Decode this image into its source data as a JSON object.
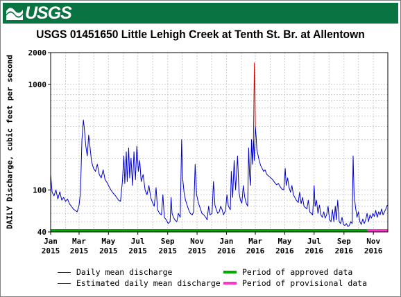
{
  "banner": {
    "logo_text": "USGS",
    "color": "#0a7342"
  },
  "chart_data": {
    "type": "line",
    "title": "USGS 01451650 Little Lehigh Creek at Tenth St. Br. at Allentown",
    "ylabel": "DAILY Discharge, cubic feet per second",
    "xlabel": "",
    "yscale": "log",
    "ylim": [
      40,
      2000
    ],
    "y_ticks": [
      {
        "value": 40,
        "label": "40"
      },
      {
        "value": 100,
        "label": "100"
      },
      {
        "value": 1000,
        "label": "1000"
      },
      {
        "value": 2000,
        "label": "2000"
      }
    ],
    "x_range": [
      "2015-01-01",
      "2016-12-01"
    ],
    "x_ticks": [
      {
        "month": "Jan",
        "year": "2015",
        "date": "2015-01-01"
      },
      {
        "month": "Mar",
        "year": "2015",
        "date": "2015-03-01"
      },
      {
        "month": "May",
        "year": "2015",
        "date": "2015-05-01"
      },
      {
        "month": "Jul",
        "year": "2015",
        "date": "2015-07-01"
      },
      {
        "month": "Sep",
        "year": "2015",
        "date": "2015-09-01"
      },
      {
        "month": "Nov",
        "year": "2015",
        "date": "2015-11-01"
      },
      {
        "month": "Jan",
        "year": "2016",
        "date": "2016-01-01"
      },
      {
        "month": "Mar",
        "year": "2016",
        "date": "2016-03-01"
      },
      {
        "month": "May",
        "year": "2016",
        "date": "2016-05-01"
      },
      {
        "month": "Jul",
        "year": "2016",
        "date": "2016-07-01"
      },
      {
        "month": "Sep",
        "year": "2016",
        "date": "2016-09-01"
      },
      {
        "month": "Nov",
        "year": "2016",
        "date": "2016-11-01"
      }
    ],
    "grid": true,
    "legend_position": "bottom",
    "series": [
      {
        "name": "Daily mean discharge",
        "color": "#0000cc",
        "points": [
          [
            "2015-01-01",
            140
          ],
          [
            "2015-01-04",
            95
          ],
          [
            "2015-01-08",
            88
          ],
          [
            "2015-01-12",
            100
          ],
          [
            "2015-01-16",
            82
          ],
          [
            "2015-01-20",
            96
          ],
          [
            "2015-01-24",
            80
          ],
          [
            "2015-01-28",
            85
          ],
          [
            "2015-02-01",
            78
          ],
          [
            "2015-02-05",
            82
          ],
          [
            "2015-02-09",
            74
          ],
          [
            "2015-02-13",
            70
          ],
          [
            "2015-02-17",
            66
          ],
          [
            "2015-02-21",
            64
          ],
          [
            "2015-02-25",
            62
          ],
          [
            "2015-03-01",
            72
          ],
          [
            "2015-03-04",
            95
          ],
          [
            "2015-03-07",
            300
          ],
          [
            "2015-03-10",
            460
          ],
          [
            "2015-03-12",
            380
          ],
          [
            "2015-03-15",
            260
          ],
          [
            "2015-03-18",
            210
          ],
          [
            "2015-03-21",
            330
          ],
          [
            "2015-03-24",
            250
          ],
          [
            "2015-03-27",
            185
          ],
          [
            "2015-03-31",
            160
          ],
          [
            "2015-04-04",
            150
          ],
          [
            "2015-04-08",
            175
          ],
          [
            "2015-04-12",
            140
          ],
          [
            "2015-04-16",
            130
          ],
          [
            "2015-04-20",
            155
          ],
          [
            "2015-04-24",
            125
          ],
          [
            "2015-04-28",
            118
          ],
          [
            "2015-05-02",
            108
          ],
          [
            "2015-05-06",
            100
          ],
          [
            "2015-05-10",
            94
          ],
          [
            "2015-05-14",
            90
          ],
          [
            "2015-05-18",
            85
          ],
          [
            "2015-05-22",
            80
          ],
          [
            "2015-05-26",
            78
          ],
          [
            "2015-05-30",
            120
          ],
          [
            "2015-06-02",
            210
          ],
          [
            "2015-06-04",
            115
          ],
          [
            "2015-06-07",
            230
          ],
          [
            "2015-06-09",
            120
          ],
          [
            "2015-06-12",
            250
          ],
          [
            "2015-06-14",
            130
          ],
          [
            "2015-06-17",
            200
          ],
          [
            "2015-06-20",
            110
          ],
          [
            "2015-06-23",
            230
          ],
          [
            "2015-06-26",
            125
          ],
          [
            "2015-06-29",
            260
          ],
          [
            "2015-07-02",
            150
          ],
          [
            "2015-07-05",
            190
          ],
          [
            "2015-07-08",
            120
          ],
          [
            "2015-07-12",
            140
          ],
          [
            "2015-07-16",
            100
          ],
          [
            "2015-07-20",
            90
          ],
          [
            "2015-07-24",
            110
          ],
          [
            "2015-07-28",
            84
          ],
          [
            "2015-08-01",
            75
          ],
          [
            "2015-08-04",
            70
          ],
          [
            "2015-08-08",
            105
          ],
          [
            "2015-08-11",
            65
          ],
          [
            "2015-08-15",
            60
          ],
          [
            "2015-08-19",
            58
          ],
          [
            "2015-08-22",
            90
          ],
          [
            "2015-08-25",
            55
          ],
          [
            "2015-08-29",
            52
          ],
          [
            "2015-09-02",
            48
          ],
          [
            "2015-09-06",
            50
          ],
          [
            "2015-09-08",
            85
          ],
          [
            "2015-09-10",
            60
          ],
          [
            "2015-09-13",
            55
          ],
          [
            "2015-09-16",
            52
          ],
          [
            "2015-09-20",
            50
          ],
          [
            "2015-09-23",
            60
          ],
          [
            "2015-09-27",
            55
          ],
          [
            "2015-09-30",
            300
          ],
          [
            "2015-10-02",
            130
          ],
          [
            "2015-10-05",
            95
          ],
          [
            "2015-10-08",
            80
          ],
          [
            "2015-10-12",
            70
          ],
          [
            "2015-10-15",
            64
          ],
          [
            "2015-10-18",
            60
          ],
          [
            "2015-10-22",
            58
          ],
          [
            "2015-10-25",
            62
          ],
          [
            "2015-10-28",
            175
          ],
          [
            "2015-10-31",
            90
          ],
          [
            "2015-11-04",
            75
          ],
          [
            "2015-11-08",
            66
          ],
          [
            "2015-11-11",
            60
          ],
          [
            "2015-11-15",
            58
          ],
          [
            "2015-11-19",
            55
          ],
          [
            "2015-11-22",
            52
          ],
          [
            "2015-11-25",
            70
          ],
          [
            "2015-11-28",
            58
          ],
          [
            "2015-12-02",
            60
          ],
          [
            "2015-12-05",
            120
          ],
          [
            "2015-12-08",
            72
          ],
          [
            "2015-12-11",
            65
          ],
          [
            "2015-12-14",
            60
          ],
          [
            "2015-12-17",
            62
          ],
          [
            "2015-12-20",
            70
          ],
          [
            "2015-12-23",
            65
          ],
          [
            "2015-12-26",
            58
          ],
          [
            "2015-12-30",
            64
          ],
          [
            "2016-01-02",
            90
          ],
          [
            "2016-01-05",
            70
          ],
          [
            "2016-01-09",
            65
          ],
          [
            "2016-01-11",
            150
          ],
          [
            "2016-01-14",
            85
          ],
          [
            "2016-01-17",
            190
          ],
          [
            "2016-01-20",
            100
          ],
          [
            "2016-01-24",
            210
          ],
          [
            "2016-01-27",
            95
          ],
          [
            "2016-01-30",
            80
          ],
          [
            "2016-02-02",
            75
          ],
          [
            "2016-02-05",
            110
          ],
          [
            "2016-02-08",
            85
          ],
          [
            "2016-02-11",
            75
          ],
          [
            "2016-02-14",
            70
          ],
          [
            "2016-02-16",
            250
          ],
          [
            "2016-02-18",
            140
          ],
          [
            "2016-02-20",
            110
          ],
          [
            "2016-02-22",
            300
          ],
          [
            "2016-02-24",
            175
          ],
          [
            "2016-02-26",
            300
          ],
          [
            "2016-02-28",
            190
          ],
          [
            "2016-03-01",
            400
          ],
          [
            "2016-03-03",
            300
          ],
          [
            "2016-03-04",
            240
          ],
          [
            "2016-03-06",
            220
          ],
          [
            "2016-03-09",
            190
          ],
          [
            "2016-03-12",
            170
          ],
          [
            "2016-03-15",
            160
          ],
          [
            "2016-03-18",
            150
          ],
          [
            "2016-03-21",
            155
          ],
          [
            "2016-03-25",
            140
          ],
          [
            "2016-03-29",
            135
          ],
          [
            "2016-04-02",
            130
          ],
          [
            "2016-04-06",
            125
          ],
          [
            "2016-04-10",
            118
          ],
          [
            "2016-04-14",
            112
          ],
          [
            "2016-04-18",
            115
          ],
          [
            "2016-04-21",
            108
          ],
          [
            "2016-04-25",
            102
          ],
          [
            "2016-04-29",
            100
          ],
          [
            "2016-05-02",
            160
          ],
          [
            "2016-05-04",
            110
          ],
          [
            "2016-05-07",
            130
          ],
          [
            "2016-05-10",
            105
          ],
          [
            "2016-05-13",
            95
          ],
          [
            "2016-05-16",
            110
          ],
          [
            "2016-05-19",
            90
          ],
          [
            "2016-05-22",
            85
          ],
          [
            "2016-05-25",
            80
          ],
          [
            "2016-05-29",
            76
          ],
          [
            "2016-06-01",
            95
          ],
          [
            "2016-06-04",
            74
          ],
          [
            "2016-06-07",
            85
          ],
          [
            "2016-06-10",
            70
          ],
          [
            "2016-06-13",
            68
          ],
          [
            "2016-06-16",
            66
          ],
          [
            "2016-06-19",
            80
          ],
          [
            "2016-06-22",
            62
          ],
          [
            "2016-06-25",
            60
          ],
          [
            "2016-06-28",
            58
          ],
          [
            "2016-07-01",
            110
          ],
          [
            "2016-07-03",
            70
          ],
          [
            "2016-07-06",
            80
          ],
          [
            "2016-07-09",
            60
          ],
          [
            "2016-07-12",
            72
          ],
          [
            "2016-07-15",
            58
          ],
          [
            "2016-07-18",
            55
          ],
          [
            "2016-07-21",
            62
          ],
          [
            "2016-07-24",
            54
          ],
          [
            "2016-07-27",
            58
          ],
          [
            "2016-07-30",
            70
          ],
          [
            "2016-08-02",
            52
          ],
          [
            "2016-08-05",
            50
          ],
          [
            "2016-08-08",
            65
          ],
          [
            "2016-08-11",
            50
          ],
          [
            "2016-08-14",
            70
          ],
          [
            "2016-08-16",
            52
          ],
          [
            "2016-08-19",
            80
          ],
          [
            "2016-08-22",
            50
          ],
          [
            "2016-08-25",
            48
          ],
          [
            "2016-08-28",
            55
          ],
          [
            "2016-08-31",
            47
          ],
          [
            "2016-09-03",
            46
          ],
          [
            "2016-09-06",
            48
          ],
          [
            "2016-09-09",
            45
          ],
          [
            "2016-09-12",
            46
          ],
          [
            "2016-09-15",
            50
          ],
          [
            "2016-09-18",
            48
          ],
          [
            "2016-09-20",
            210
          ],
          [
            "2016-09-22",
            90
          ],
          [
            "2016-09-25",
            68
          ],
          [
            "2016-09-28",
            55
          ],
          [
            "2016-10-01",
            62
          ],
          [
            "2016-10-04",
            50
          ],
          [
            "2016-10-07",
            47
          ],
          [
            "2016-10-10",
            53
          ],
          [
            "2016-10-13",
            48
          ],
          [
            "2016-10-16",
            52
          ],
          [
            "2016-10-19",
            60
          ],
          [
            "2016-10-22",
            50
          ],
          [
            "2016-10-25",
            58
          ],
          [
            "2016-10-28",
            54
          ],
          [
            "2016-10-31",
            60
          ],
          [
            "2016-11-03",
            56
          ],
          [
            "2016-11-06",
            64
          ],
          [
            "2016-11-09",
            55
          ],
          [
            "2016-11-12",
            62
          ],
          [
            "2016-11-15",
            58
          ],
          [
            "2016-11-18",
            66
          ],
          [
            "2016-11-21",
            58
          ],
          [
            "2016-11-24",
            62
          ],
          [
            "2016-11-27",
            66
          ],
          [
            "2016-11-30",
            72
          ]
        ]
      },
      {
        "name": "Estimated daily mean discharge",
        "color": "#cc0000",
        "points": [
          [
            "2016-02-26",
            300
          ],
          [
            "2016-02-28",
            1600
          ],
          [
            "2016-02-29",
            900
          ],
          [
            "2016-03-01",
            400
          ]
        ]
      }
    ],
    "approval_bars": [
      {
        "name": "Period of approved data",
        "color": "#00aa00",
        "start": "2015-01-01",
        "end": "2016-10-20"
      },
      {
        "name": "Period of provisional data",
        "color": "#ff33cc",
        "start": "2016-10-20",
        "end": "2016-12-01"
      }
    ]
  }
}
